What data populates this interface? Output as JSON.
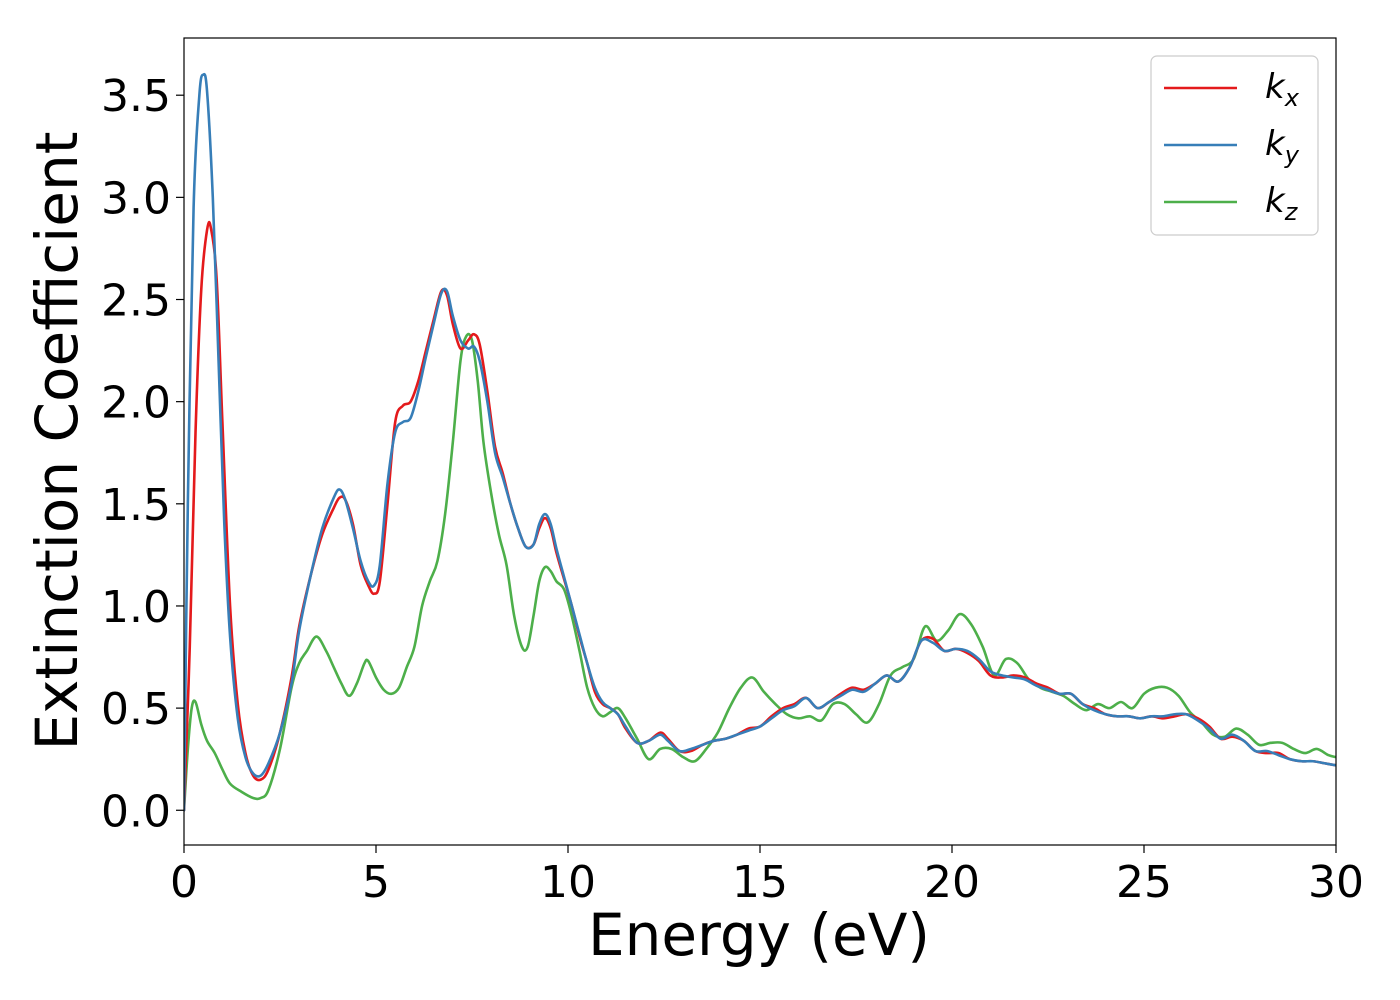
{
  "chart_data": {
    "type": "line",
    "title": "",
    "xlabel": "Energy (eV)",
    "ylabel": "Extinction Coefficient",
    "xlim": [
      0,
      30
    ],
    "ylim": [
      -0.17,
      3.78
    ],
    "xticks": [
      0,
      5,
      10,
      15,
      20,
      25,
      30
    ],
    "xtick_labels": [
      "0",
      "5",
      "10",
      "15",
      "20",
      "25",
      "30"
    ],
    "yticks": [
      0.0,
      0.5,
      1.0,
      1.5,
      2.0,
      2.5,
      3.0,
      3.5
    ],
    "ytick_labels": [
      "0.0",
      "0.5",
      "1.0",
      "1.5",
      "2.0",
      "2.5",
      "3.0",
      "3.5"
    ],
    "grid": false,
    "legend_position": "top-right",
    "series": [
      {
        "name": "k_x",
        "legend": {
          "base": "k",
          "sub": "x"
        },
        "color": "#e41a1c",
        "x": [
          0.0,
          0.15,
          0.3,
          0.45,
          0.6,
          0.7,
          0.85,
          1.0,
          1.2,
          1.4,
          1.6,
          1.8,
          2.0,
          2.2,
          2.5,
          2.8,
          3.0,
          3.3,
          3.6,
          3.9,
          4.05,
          4.2,
          4.4,
          4.6,
          4.8,
          4.95,
          5.1,
          5.3,
          5.5,
          5.7,
          5.9,
          6.1,
          6.3,
          6.5,
          6.7,
          6.85,
          7.0,
          7.2,
          7.4,
          7.55,
          7.7,
          7.9,
          8.1,
          8.3,
          8.5,
          8.7,
          8.9,
          9.1,
          9.25,
          9.4,
          9.55,
          9.7,
          9.9,
          10.1,
          10.3,
          10.5,
          10.7,
          10.9,
          11.1,
          11.3,
          11.5,
          11.8,
          12.1,
          12.4,
          12.6,
          12.9,
          13.2,
          13.5,
          13.8,
          14.1,
          14.4,
          14.7,
          15.0,
          15.3,
          15.6,
          15.9,
          16.2,
          16.5,
          16.8,
          17.1,
          17.4,
          17.7,
          18.0,
          18.3,
          18.6,
          18.9,
          19.2,
          19.5,
          19.8,
          20.1,
          20.4,
          20.7,
          21.0,
          21.3,
          21.6,
          21.9,
          22.2,
          22.5,
          22.8,
          23.1,
          23.4,
          23.7,
          24.0,
          24.3,
          24.6,
          24.9,
          25.2,
          25.5,
          25.8,
          26.1,
          26.4,
          26.7,
          27.0,
          27.3,
          27.6,
          27.9,
          28.2,
          28.5,
          28.8,
          29.1,
          29.4,
          29.7,
          30.0
        ],
        "y": [
          0.0,
          0.8,
          1.85,
          2.55,
          2.84,
          2.85,
          2.6,
          1.9,
          1.0,
          0.52,
          0.28,
          0.17,
          0.15,
          0.2,
          0.38,
          0.65,
          0.9,
          1.15,
          1.35,
          1.48,
          1.53,
          1.52,
          1.4,
          1.2,
          1.1,
          1.06,
          1.12,
          1.5,
          1.9,
          1.98,
          2.0,
          2.1,
          2.25,
          2.4,
          2.54,
          2.52,
          2.38,
          2.26,
          2.3,
          2.33,
          2.28,
          2.05,
          1.78,
          1.65,
          1.5,
          1.38,
          1.29,
          1.3,
          1.38,
          1.43,
          1.38,
          1.26,
          1.13,
          1.0,
          0.85,
          0.72,
          0.58,
          0.52,
          0.5,
          0.47,
          0.4,
          0.33,
          0.34,
          0.38,
          0.35,
          0.29,
          0.29,
          0.32,
          0.34,
          0.35,
          0.37,
          0.4,
          0.41,
          0.46,
          0.5,
          0.52,
          0.55,
          0.5,
          0.53,
          0.57,
          0.6,
          0.59,
          0.62,
          0.66,
          0.63,
          0.7,
          0.83,
          0.84,
          0.78,
          0.79,
          0.77,
          0.73,
          0.66,
          0.65,
          0.66,
          0.65,
          0.62,
          0.6,
          0.57,
          0.57,
          0.52,
          0.5,
          0.47,
          0.46,
          0.46,
          0.45,
          0.46,
          0.45,
          0.46,
          0.47,
          0.45,
          0.41,
          0.35,
          0.36,
          0.34,
          0.29,
          0.28,
          0.28,
          0.25,
          0.24,
          0.24,
          0.23,
          0.22
        ]
      },
      {
        "name": "k_y",
        "legend": {
          "base": "k",
          "sub": "y"
        },
        "color": "#377eb8",
        "x": [
          0.0,
          0.1,
          0.25,
          0.4,
          0.5,
          0.6,
          0.75,
          0.9,
          1.05,
          1.2,
          1.4,
          1.6,
          1.8,
          2.0,
          2.2,
          2.5,
          2.8,
          3.0,
          3.3,
          3.6,
          3.9,
          4.05,
          4.2,
          4.4,
          4.6,
          4.8,
          4.95,
          5.1,
          5.3,
          5.5,
          5.7,
          5.9,
          6.1,
          6.3,
          6.5,
          6.7,
          6.85,
          7.0,
          7.2,
          7.4,
          7.55,
          7.7,
          7.9,
          8.1,
          8.3,
          8.5,
          8.7,
          8.9,
          9.1,
          9.25,
          9.4,
          9.55,
          9.7,
          9.9,
          10.1,
          10.3,
          10.5,
          10.7,
          10.9,
          11.1,
          11.3,
          11.5,
          11.8,
          12.1,
          12.4,
          12.6,
          12.9,
          13.2,
          13.5,
          13.8,
          14.1,
          14.4,
          14.7,
          15.0,
          15.3,
          15.6,
          15.9,
          16.2,
          16.5,
          16.8,
          17.1,
          17.4,
          17.7,
          18.0,
          18.3,
          18.6,
          18.9,
          19.2,
          19.5,
          19.8,
          20.1,
          20.4,
          20.7,
          21.0,
          21.3,
          21.6,
          21.9,
          22.2,
          22.5,
          22.8,
          23.1,
          23.4,
          23.7,
          24.0,
          24.3,
          24.6,
          24.9,
          25.2,
          25.5,
          25.8,
          26.1,
          26.4,
          26.7,
          27.0,
          27.3,
          27.6,
          27.9,
          28.2,
          28.5,
          28.8,
          29.1,
          29.4,
          29.7,
          30.0
        ],
        "y": [
          0.0,
          1.5,
          2.95,
          3.5,
          3.6,
          3.52,
          3.0,
          2.2,
          1.4,
          0.85,
          0.45,
          0.26,
          0.18,
          0.17,
          0.23,
          0.38,
          0.62,
          0.88,
          1.15,
          1.38,
          1.53,
          1.57,
          1.52,
          1.38,
          1.22,
          1.12,
          1.1,
          1.2,
          1.6,
          1.85,
          1.9,
          1.92,
          2.05,
          2.22,
          2.38,
          2.53,
          2.54,
          2.42,
          2.3,
          2.26,
          2.27,
          2.2,
          2.0,
          1.75,
          1.63,
          1.5,
          1.38,
          1.29,
          1.3,
          1.4,
          1.45,
          1.4,
          1.28,
          1.14,
          1.0,
          0.86,
          0.72,
          0.6,
          0.53,
          0.5,
          0.47,
          0.41,
          0.33,
          0.34,
          0.37,
          0.34,
          0.29,
          0.3,
          0.32,
          0.34,
          0.35,
          0.37,
          0.39,
          0.41,
          0.45,
          0.49,
          0.51,
          0.55,
          0.5,
          0.53,
          0.56,
          0.59,
          0.58,
          0.62,
          0.66,
          0.63,
          0.7,
          0.83,
          0.82,
          0.78,
          0.79,
          0.78,
          0.74,
          0.68,
          0.66,
          0.65,
          0.64,
          0.61,
          0.59,
          0.57,
          0.57,
          0.52,
          0.49,
          0.47,
          0.46,
          0.46,
          0.45,
          0.46,
          0.46,
          0.47,
          0.47,
          0.44,
          0.4,
          0.35,
          0.37,
          0.34,
          0.29,
          0.29,
          0.27,
          0.25,
          0.24,
          0.24,
          0.23,
          0.22
        ]
      },
      {
        "name": "k_z",
        "legend": {
          "base": "k",
          "sub": "z"
        },
        "color": "#4daf4a",
        "x": [
          0.0,
          0.1,
          0.2,
          0.3,
          0.45,
          0.6,
          0.8,
          1.0,
          1.2,
          1.5,
          1.8,
          2.0,
          2.2,
          2.5,
          2.8,
          3.0,
          3.2,
          3.45,
          3.7,
          3.9,
          4.1,
          4.3,
          4.5,
          4.7,
          4.8,
          5.0,
          5.2,
          5.4,
          5.6,
          5.8,
          6.0,
          6.2,
          6.4,
          6.6,
          6.8,
          7.0,
          7.2,
          7.35,
          7.5,
          7.65,
          7.8,
          8.0,
          8.2,
          8.4,
          8.6,
          8.8,
          8.95,
          9.1,
          9.25,
          9.4,
          9.55,
          9.7,
          9.9,
          10.1,
          10.3,
          10.5,
          10.7,
          10.9,
          11.1,
          11.3,
          11.5,
          11.8,
          12.1,
          12.4,
          12.7,
          13.0,
          13.3,
          13.6,
          13.9,
          14.2,
          14.5,
          14.8,
          15.1,
          15.4,
          15.7,
          16.0,
          16.3,
          16.6,
          16.9,
          17.2,
          17.5,
          17.8,
          18.1,
          18.4,
          18.7,
          19.0,
          19.3,
          19.6,
          19.9,
          20.2,
          20.5,
          20.8,
          21.1,
          21.4,
          21.7,
          22.0,
          22.3,
          22.6,
          22.9,
          23.2,
          23.5,
          23.8,
          24.1,
          24.4,
          24.7,
          25.0,
          25.3,
          25.6,
          25.9,
          26.2,
          26.5,
          26.8,
          27.1,
          27.4,
          27.7,
          28.0,
          28.3,
          28.6,
          28.9,
          29.2,
          29.5,
          29.8,
          30.0
        ],
        "y": [
          0.0,
          0.3,
          0.5,
          0.53,
          0.42,
          0.34,
          0.28,
          0.2,
          0.13,
          0.09,
          0.06,
          0.06,
          0.1,
          0.3,
          0.6,
          0.72,
          0.78,
          0.85,
          0.78,
          0.7,
          0.62,
          0.56,
          0.62,
          0.72,
          0.73,
          0.65,
          0.59,
          0.57,
          0.6,
          0.7,
          0.8,
          1.0,
          1.12,
          1.22,
          1.45,
          1.8,
          2.2,
          2.32,
          2.3,
          2.1,
          1.8,
          1.55,
          1.35,
          1.2,
          0.95,
          0.8,
          0.8,
          0.95,
          1.12,
          1.19,
          1.17,
          1.12,
          1.08,
          0.95,
          0.78,
          0.6,
          0.5,
          0.46,
          0.48,
          0.5,
          0.45,
          0.35,
          0.25,
          0.3,
          0.3,
          0.26,
          0.24,
          0.3,
          0.38,
          0.5,
          0.6,
          0.65,
          0.58,
          0.52,
          0.47,
          0.45,
          0.46,
          0.44,
          0.52,
          0.52,
          0.47,
          0.43,
          0.52,
          0.66,
          0.7,
          0.74,
          0.9,
          0.83,
          0.88,
          0.96,
          0.91,
          0.8,
          0.66,
          0.74,
          0.72,
          0.64,
          0.6,
          0.58,
          0.56,
          0.52,
          0.49,
          0.52,
          0.5,
          0.53,
          0.5,
          0.57,
          0.6,
          0.6,
          0.56,
          0.48,
          0.43,
          0.37,
          0.36,
          0.4,
          0.37,
          0.32,
          0.33,
          0.33,
          0.3,
          0.28,
          0.3,
          0.27,
          0.26
        ]
      }
    ]
  }
}
